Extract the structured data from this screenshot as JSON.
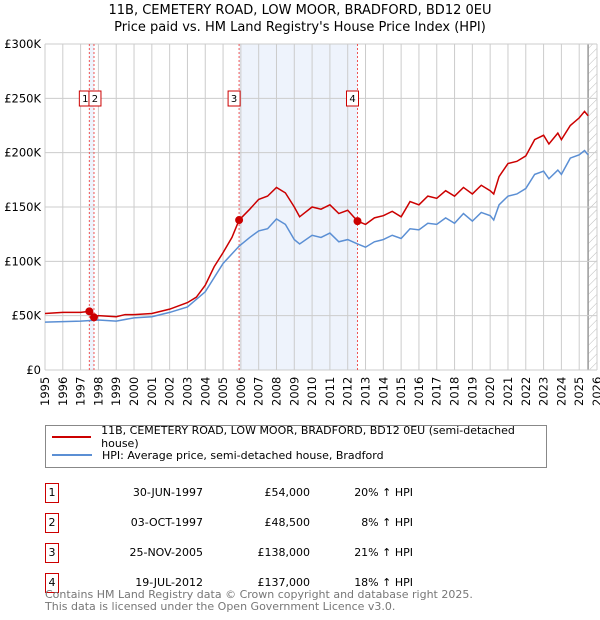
{
  "title": "11B, CEMETERY ROAD, LOW MOOR, BRADFORD, BD12 0EU",
  "subtitle": "Price paid vs. HM Land Registry's House Price Index (HPI)",
  "colors": {
    "property": "#cc0000",
    "hpi": "#5b8fd4",
    "shade": "#eef3fc"
  },
  "chart_data": {
    "type": "line",
    "xlim": [
      1995,
      2026
    ],
    "ylim": [
      0,
      300000
    ],
    "yticks": [
      {
        "v": 0,
        "label": "£0"
      },
      {
        "v": 50000,
        "label": "£50K"
      },
      {
        "v": 100000,
        "label": "£100K"
      },
      {
        "v": 150000,
        "label": "£150K"
      },
      {
        "v": 200000,
        "label": "£200K"
      },
      {
        "v": 250000,
        "label": "£250K"
      },
      {
        "v": 300000,
        "label": "£300K"
      }
    ],
    "xticks": [
      "1995",
      "1996",
      "1997",
      "1998",
      "1999",
      "2000",
      "2001",
      "2002",
      "2003",
      "2004",
      "2005",
      "2006",
      "2007",
      "2008",
      "2009",
      "2010",
      "2011",
      "2012",
      "2013",
      "2014",
      "2015",
      "2016",
      "2017",
      "2018",
      "2019",
      "2020",
      "2021",
      "2022",
      "2023",
      "2024",
      "2025",
      "2026"
    ],
    "series": [
      {
        "name": "11B, CEMETERY ROAD, LOW MOOR, BRADFORD, BD12 0EU (semi-detached house)",
        "x": [
          1995,
          1996,
          1997,
          1997.5,
          1997.75,
          1998,
          1999,
          1999.5,
          2000,
          2001,
          2002,
          2003,
          2003.5,
          2004,
          2004.5,
          2005,
          2005.5,
          2005.9,
          2006.5,
          2007,
          2007.5,
          2008,
          2008.5,
          2009,
          2009.3,
          2010,
          2010.5,
          2011,
          2011.5,
          2012,
          2012.55,
          2013,
          2013.5,
          2014,
          2014.5,
          2015,
          2015.5,
          2016,
          2016.5,
          2017,
          2017.5,
          2018,
          2018.5,
          2019,
          2019.5,
          2020,
          2020.2,
          2020.5,
          2021,
          2021.5,
          2022,
          2022.5,
          2023,
          2023.3,
          2023.8,
          2024,
          2024.5,
          2025,
          2025.3,
          2025.5
        ],
        "y": [
          52000,
          53000,
          53000,
          54000,
          48500,
          50000,
          49000,
          51000,
          51000,
          52000,
          56000,
          62000,
          67000,
          78000,
          95000,
          108000,
          122000,
          138000,
          148000,
          157000,
          160000,
          168000,
          163000,
          150000,
          141000,
          150000,
          148000,
          152000,
          144000,
          147000,
          137000,
          134000,
          140000,
          142000,
          146000,
          141000,
          155000,
          152000,
          160000,
          158000,
          165000,
          160000,
          168000,
          162000,
          170000,
          165000,
          162000,
          178000,
          190000,
          192000,
          197000,
          212000,
          216000,
          208000,
          218000,
          212000,
          225000,
          232000,
          238000,
          234000
        ]
      },
      {
        "name": "HPI: Average price, semi-detached house, Bradford",
        "x": [
          1995,
          1997,
          1998,
          1999,
          2000,
          2001,
          2002,
          2003,
          2004,
          2005,
          2005.9,
          2006.5,
          2007,
          2007.5,
          2008,
          2008.5,
          2009,
          2009.3,
          2010,
          2010.5,
          2011,
          2011.5,
          2012,
          2012.55,
          2013,
          2013.5,
          2014,
          2014.5,
          2015,
          2015.5,
          2016,
          2016.5,
          2017,
          2017.5,
          2018,
          2018.5,
          2019,
          2019.5,
          2020,
          2020.2,
          2020.5,
          2021,
          2021.5,
          2022,
          2022.5,
          2023,
          2023.3,
          2023.8,
          2024,
          2024.5,
          2025,
          2025.3,
          2025.5
        ],
        "y": [
          44000,
          45000,
          46000,
          45000,
          48000,
          49000,
          53000,
          58000,
          72000,
          98000,
          114000,
          122000,
          128000,
          130000,
          139000,
          134000,
          120000,
          116000,
          124000,
          122000,
          126000,
          118000,
          120000,
          116000,
          113000,
          118000,
          120000,
          124000,
          121000,
          130000,
          129000,
          135000,
          134000,
          140000,
          135000,
          144000,
          137000,
          145000,
          142000,
          138000,
          152000,
          160000,
          162000,
          167000,
          180000,
          183000,
          176000,
          184000,
          180000,
          195000,
          198000,
          202000,
          198000
        ]
      }
    ],
    "sales": [
      {
        "n": "1",
        "x": 1997.49,
        "y": 54000
      },
      {
        "n": "2",
        "x": 1997.75,
        "y": 48500
      },
      {
        "n": "3",
        "x": 2005.9,
        "y": 138000
      },
      {
        "n": "4",
        "x": 2012.55,
        "y": 137000
      }
    ]
  },
  "legend": {
    "property": "11B, CEMETERY ROAD, LOW MOOR, BRADFORD, BD12 0EU (semi-detached house)",
    "hpi": "HPI: Average price, semi-detached house, Bradford"
  },
  "transactions": [
    {
      "n": "1",
      "date": "30-JUN-1997",
      "price": "£54,000",
      "hpi": "20% ↑ HPI"
    },
    {
      "n": "2",
      "date": "03-OCT-1997",
      "price": "£48,500",
      "hpi": "8% ↑ HPI"
    },
    {
      "n": "3",
      "date": "25-NOV-2005",
      "price": "£138,000",
      "hpi": "21% ↑ HPI"
    },
    {
      "n": "4",
      "date": "19-JUL-2012",
      "price": "£137,000",
      "hpi": "18% ↑ HPI"
    }
  ],
  "footer": {
    "line1": "Contains HM Land Registry data © Crown copyright and database right 2025.",
    "line2": "This data is licensed under the Open Government Licence v3.0."
  }
}
